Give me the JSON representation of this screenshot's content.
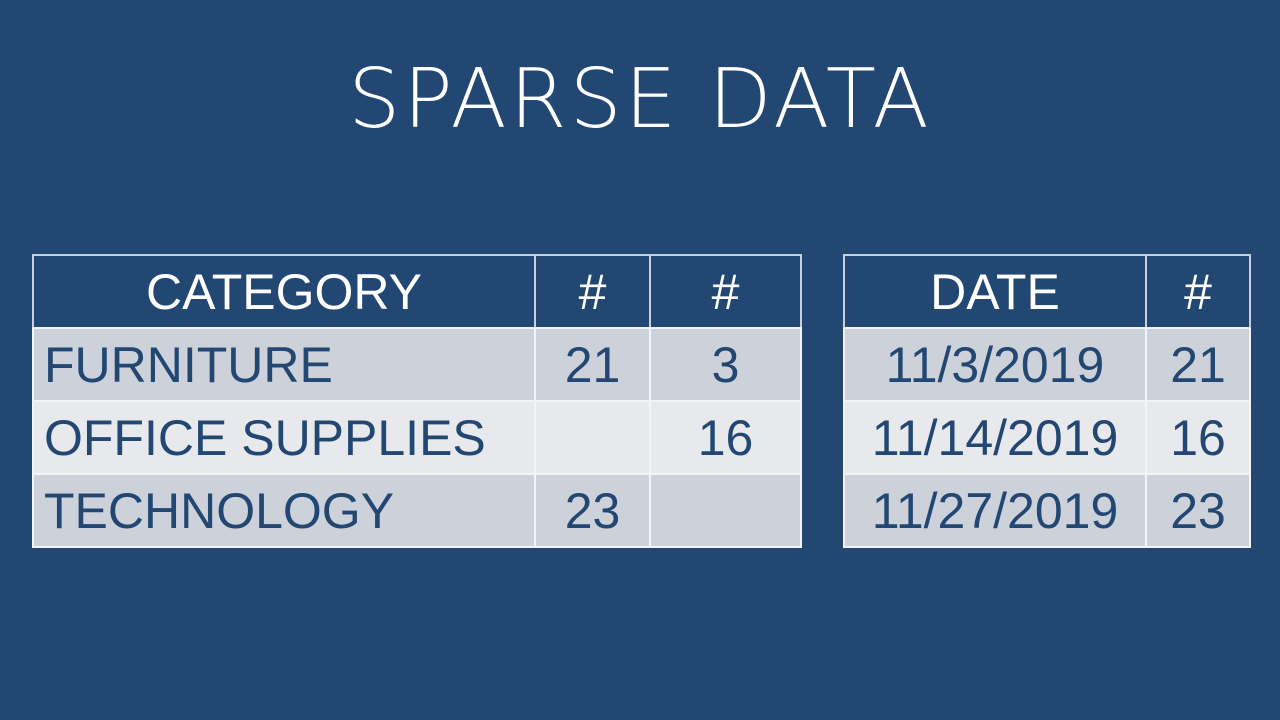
{
  "title": "SPARSE DATA",
  "colors": {
    "background": "#224772",
    "header_text": "#ffffff",
    "row_odd": "#cdd1d9",
    "row_even": "#e8e9ec",
    "cell_text": "#224772"
  },
  "category_table": {
    "headers": [
      "CATEGORY",
      "#",
      "#"
    ],
    "rows": [
      [
        "FURNITURE",
        "21",
        "3"
      ],
      [
        "OFFICE SUPPLIES",
        "",
        "16"
      ],
      [
        "TECHNOLOGY",
        "23",
        ""
      ]
    ]
  },
  "date_table": {
    "headers": [
      "DATE",
      "#"
    ],
    "rows": [
      [
        "11/3/2019",
        "21"
      ],
      [
        "11/14/2019",
        "16"
      ],
      [
        "11/27/2019",
        "23"
      ]
    ]
  }
}
